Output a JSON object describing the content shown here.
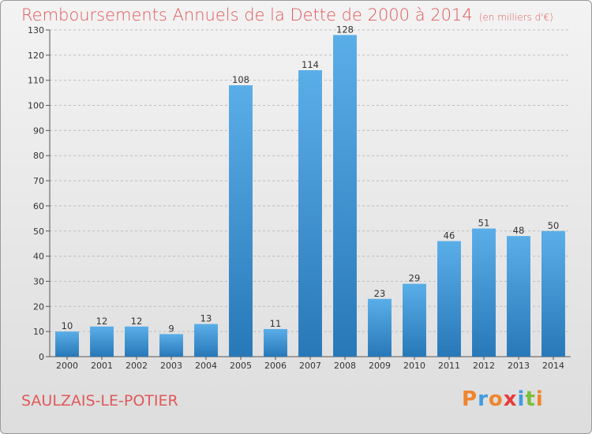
{
  "page": {
    "title": "Remboursements Annuels de la Dette de 2000 à 2014",
    "subtitle": "(en milliers d'€)",
    "commune": "SAULZAIS-LE-POTIER",
    "logo_text": "Proxiti"
  },
  "colors": {
    "bar_top": "#5aaee8",
    "bar_bottom": "#2878b8",
    "title": "#e0585a",
    "grid": "#bdbdbd",
    "logo_letters": [
      "#f0852d",
      "#3f9be0",
      "#f0852d",
      "#e83b3b",
      "#3f9be0",
      "#7bbf3a",
      "#f0852d"
    ]
  },
  "chart_data": {
    "type": "bar",
    "title": "Remboursements Annuels de la Dette de 2000 à 2014",
    "subtitle": "(en milliers d'€)",
    "xlabel": "",
    "ylabel": "",
    "categories": [
      "2000",
      "2001",
      "2002",
      "2003",
      "2004",
      "2005",
      "2006",
      "2007",
      "2008",
      "2009",
      "2010",
      "2011",
      "2012",
      "2013",
      "2014"
    ],
    "values": [
      10,
      12,
      12,
      9,
      13,
      108,
      11,
      114,
      128,
      23,
      29,
      46,
      51,
      48,
      50
    ],
    "ylim": [
      0,
      130
    ],
    "yticks": [
      0,
      10,
      20,
      30,
      40,
      50,
      60,
      70,
      80,
      90,
      100,
      110,
      120,
      130
    ],
    "grid": true,
    "legend": "none"
  }
}
